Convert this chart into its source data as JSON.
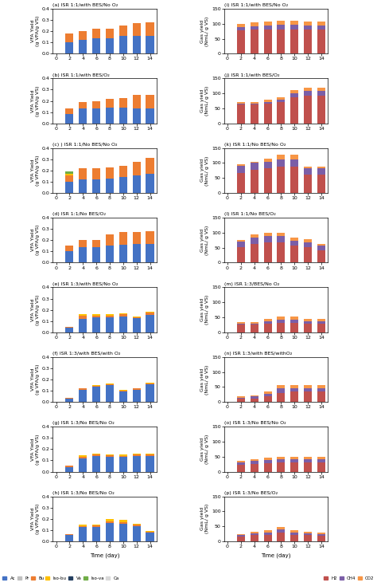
{
  "left_titles": [
    "(a) ISR 1:1/with BES/No O₂",
    "(b) ISR 1:1/with BES/O₂",
    "(c) ) ISR 1:1/No BES/No O₂",
    "(d) ISR 1:1/No BES/O₂",
    "(e) ISR 1:3/with BES/No O₂",
    "(f) ISR 1:3/with BES/with O₂",
    "(g) ISR 1:3/No BES/No O₂",
    "(h) ISR 1:3/No BES/No O₂"
  ],
  "right_titles": [
    "(i) ISR 1:1/with BES/No O₂",
    "(j) ISR 1:1/with BES/O₂",
    "(k) ISR 1:1/No BES/No O₂",
    "(l) ISR 1:1/No BES/O₂",
    "(m) ISR 1:3/BES/No O₂",
    "(n) ISR 1:3/with BES/withO₂",
    "(o) ISR 1:3/No BES/No O₂",
    "(p) ISR 1:3/No BES/O₂"
  ],
  "days": [
    0,
    2,
    4,
    6,
    8,
    10,
    12,
    14
  ],
  "bar_days": [
    2,
    4,
    6,
    8,
    10,
    12,
    14
  ],
  "vfa_colors": [
    "#4472C4",
    "#C0C0C0",
    "#ED7D31",
    "#FFC000",
    "#243F60",
    "#70AD47",
    "#D9D9D9"
  ],
  "vfa_labels": [
    "Ac",
    "Pr",
    "Bu",
    "Iso-bu",
    "Va",
    "Iso-va",
    "Ca"
  ],
  "gas_colors": [
    "#C0504D",
    "#7B5EA7",
    "#F79646"
  ],
  "gas_labels": [
    "H2",
    "CH4",
    "CO2"
  ],
  "left_data": [
    [
      [
        0.1,
        0.0,
        0.08,
        0.0,
        0.0,
        0.0,
        0.0
      ],
      [
        0.125,
        0.0,
        0.075,
        0.0,
        0.0,
        0.0,
        0.0
      ],
      [
        0.135,
        0.0,
        0.085,
        0.0,
        0.0,
        0.0,
        0.0
      ],
      [
        0.14,
        0.0,
        0.085,
        0.0,
        0.0,
        0.0,
        0.0
      ],
      [
        0.155,
        0.0,
        0.095,
        0.0,
        0.0,
        0.0,
        0.0
      ],
      [
        0.155,
        0.0,
        0.115,
        0.0,
        0.0,
        0.0,
        0.0
      ],
      [
        0.155,
        0.0,
        0.125,
        0.0,
        0.0,
        0.0,
        0.0
      ]
    ],
    [
      [
        0.085,
        0.0,
        0.045,
        0.0,
        0.0,
        0.0,
        0.0
      ],
      [
        0.13,
        0.0,
        0.06,
        0.0,
        0.0,
        0.0,
        0.0
      ],
      [
        0.135,
        0.0,
        0.065,
        0.0,
        0.0,
        0.0,
        0.0
      ],
      [
        0.14,
        0.0,
        0.08,
        0.0,
        0.0,
        0.0,
        0.0
      ],
      [
        0.14,
        0.0,
        0.085,
        0.0,
        0.0,
        0.0,
        0.0
      ],
      [
        0.13,
        0.0,
        0.12,
        0.0,
        0.0,
        0.0,
        0.0
      ],
      [
        0.135,
        0.0,
        0.115,
        0.0,
        0.0,
        0.0,
        0.0
      ]
    ],
    [
      [
        0.1,
        0.0,
        0.06,
        0.01,
        0.0,
        0.02,
        0.0
      ],
      [
        0.12,
        0.0,
        0.1,
        0.0,
        0.0,
        0.0,
        0.0
      ],
      [
        0.12,
        0.0,
        0.1,
        0.0,
        0.0,
        0.0,
        0.0
      ],
      [
        0.125,
        0.0,
        0.105,
        0.0,
        0.0,
        0.0,
        0.0
      ],
      [
        0.14,
        0.0,
        0.105,
        0.0,
        0.0,
        0.0,
        0.0
      ],
      [
        0.16,
        0.0,
        0.115,
        0.0,
        0.0,
        0.0,
        0.0
      ],
      [
        0.17,
        0.0,
        0.14,
        0.0,
        0.0,
        0.0,
        0.0
      ]
    ],
    [
      [
        0.1,
        0.0,
        0.05,
        0.0,
        0.0,
        0.0,
        0.0
      ],
      [
        0.135,
        0.0,
        0.065,
        0.0,
        0.0,
        0.0,
        0.0
      ],
      [
        0.135,
        0.0,
        0.065,
        0.0,
        0.0,
        0.0,
        0.0
      ],
      [
        0.15,
        0.0,
        0.1,
        0.0,
        0.0,
        0.0,
        0.0
      ],
      [
        0.16,
        0.0,
        0.11,
        0.0,
        0.0,
        0.0,
        0.0
      ],
      [
        0.165,
        0.0,
        0.11,
        0.0,
        0.0,
        0.0,
        0.0
      ],
      [
        0.165,
        0.0,
        0.115,
        0.0,
        0.0,
        0.0,
        0.0
      ]
    ],
    [
      [
        0.04,
        0.0,
        0.01,
        0.0,
        0.0,
        0.0,
        0.0
      ],
      [
        0.12,
        0.0,
        0.025,
        0.015,
        0.0,
        0.0,
        0.0
      ],
      [
        0.13,
        0.0,
        0.02,
        0.01,
        0.0,
        0.0,
        0.0
      ],
      [
        0.13,
        0.0,
        0.02,
        0.01,
        0.0,
        0.0,
        0.0
      ],
      [
        0.14,
        0.0,
        0.02,
        0.01,
        0.0,
        0.0,
        0.0
      ],
      [
        0.125,
        0.0,
        0.01,
        0.005,
        0.0,
        0.0,
        0.0
      ],
      [
        0.155,
        0.0,
        0.02,
        0.005,
        0.0,
        0.0,
        0.0
      ]
    ],
    [
      [
        0.03,
        0.0,
        0.005,
        0.0,
        0.0,
        0.0,
        0.0
      ],
      [
        0.11,
        0.0,
        0.01,
        0.005,
        0.0,
        0.0,
        0.0
      ],
      [
        0.135,
        0.0,
        0.01,
        0.005,
        0.0,
        0.0,
        0.0
      ],
      [
        0.15,
        0.0,
        0.01,
        0.005,
        0.0,
        0.0,
        0.0
      ],
      [
        0.09,
        0.0,
        0.01,
        0.005,
        0.0,
        0.0,
        0.0
      ],
      [
        0.11,
        0.0,
        0.01,
        0.005,
        0.0,
        0.0,
        0.0
      ],
      [
        0.155,
        0.0,
        0.01,
        0.005,
        0.0,
        0.0,
        0.0
      ]
    ],
    [
      [
        0.04,
        0.0,
        0.01,
        0.0,
        0.0,
        0.0,
        0.0
      ],
      [
        0.12,
        0.0,
        0.01,
        0.015,
        0.0,
        0.0,
        0.0
      ],
      [
        0.14,
        0.0,
        0.01,
        0.01,
        0.0,
        0.0,
        0.0
      ],
      [
        0.135,
        0.0,
        0.01,
        0.01,
        0.0,
        0.0,
        0.0
      ],
      [
        0.13,
        0.0,
        0.01,
        0.01,
        0.0,
        0.0,
        0.0
      ],
      [
        0.14,
        0.0,
        0.01,
        0.01,
        0.0,
        0.0,
        0.0
      ],
      [
        0.14,
        0.0,
        0.01,
        0.01,
        0.0,
        0.0,
        0.0
      ]
    ],
    [
      [
        0.055,
        0.0,
        0.01,
        0.0,
        0.0,
        0.0,
        0.0
      ],
      [
        0.125,
        0.0,
        0.01,
        0.01,
        0.0,
        0.0,
        0.0
      ],
      [
        0.13,
        0.0,
        0.01,
        0.01,
        0.0,
        0.0,
        0.0
      ],
      [
        0.16,
        0.0,
        0.015,
        0.02,
        0.0,
        0.0,
        0.0
      ],
      [
        0.155,
        0.0,
        0.015,
        0.02,
        0.0,
        0.0,
        0.0
      ],
      [
        0.135,
        0.0,
        0.01,
        0.01,
        0.0,
        0.0,
        0.0
      ],
      [
        0.08,
        0.0,
        0.005,
        0.005,
        0.0,
        0.0,
        0.0
      ]
    ]
  ],
  "right_data": [
    [
      [
        78,
        10,
        12
      ],
      [
        80,
        12,
        12
      ],
      [
        82,
        13,
        13
      ],
      [
        82,
        14,
        14
      ],
      [
        82,
        14,
        14
      ],
      [
        82,
        13,
        13
      ],
      [
        82,
        13,
        13
      ]
    ],
    [
      [
        62,
        5,
        5
      ],
      [
        62,
        5,
        5
      ],
      [
        65,
        7,
        6
      ],
      [
        70,
        10,
        7
      ],
      [
        88,
        12,
        10
      ],
      [
        92,
        15,
        12
      ],
      [
        92,
        15,
        12
      ]
    ],
    [
      [
        68,
        22,
        5
      ],
      [
        78,
        22,
        5
      ],
      [
        82,
        22,
        10
      ],
      [
        88,
        25,
        15
      ],
      [
        88,
        25,
        15
      ],
      [
        62,
        20,
        5
      ],
      [
        62,
        20,
        5
      ]
    ],
    [
      [
        52,
        18,
        5
      ],
      [
        62,
        22,
        10
      ],
      [
        68,
        22,
        10
      ],
      [
        68,
        22,
        10
      ],
      [
        58,
        16,
        10
      ],
      [
        52,
        16,
        10
      ],
      [
        42,
        16,
        5
      ]
    ],
    [
      [
        25,
        5,
        5
      ],
      [
        25,
        5,
        5
      ],
      [
        28,
        8,
        8
      ],
      [
        32,
        10,
        10
      ],
      [
        32,
        10,
        10
      ],
      [
        30,
        8,
        8
      ],
      [
        30,
        8,
        8
      ]
    ],
    [
      [
        10,
        5,
        5
      ],
      [
        12,
        6,
        5
      ],
      [
        18,
        10,
        8
      ],
      [
        30,
        15,
        10
      ],
      [
        35,
        12,
        8
      ],
      [
        35,
        12,
        8
      ],
      [
        35,
        12,
        8
      ]
    ],
    [
      [
        22,
        8,
        5
      ],
      [
        25,
        10,
        5
      ],
      [
        28,
        10,
        8
      ],
      [
        30,
        10,
        8
      ],
      [
        30,
        10,
        8
      ],
      [
        30,
        10,
        8
      ],
      [
        30,
        10,
        8
      ]
    ],
    [
      [
        15,
        5,
        5
      ],
      [
        20,
        7,
        5
      ],
      [
        22,
        8,
        6
      ],
      [
        28,
        12,
        8
      ],
      [
        22,
        8,
        6
      ],
      [
        20,
        7,
        5
      ],
      [
        18,
        6,
        5
      ]
    ]
  ]
}
